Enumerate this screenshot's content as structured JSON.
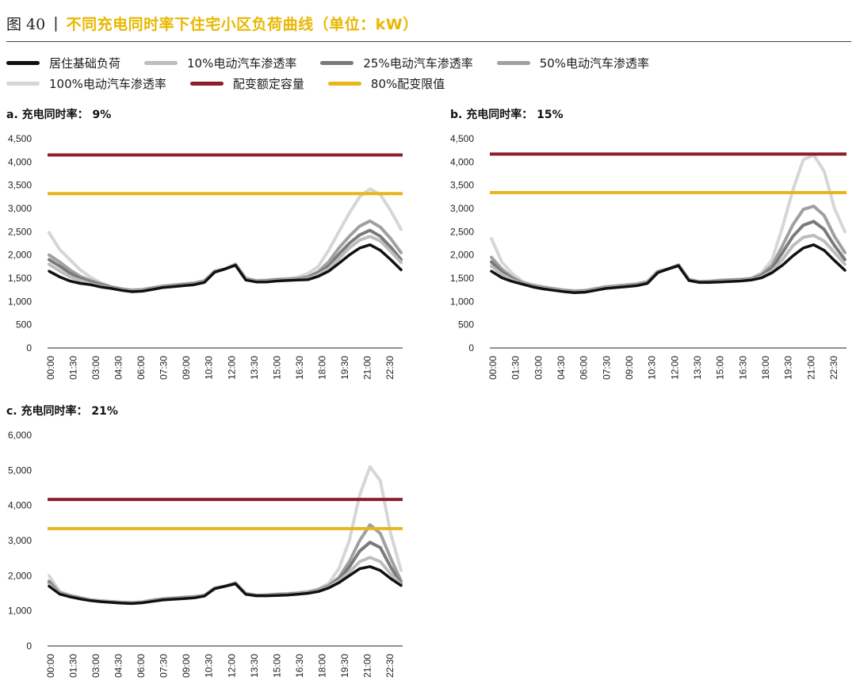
{
  "header": {
    "figure_label": "图 40",
    "separator": "|",
    "title": "不同充电同时率下住宅小区负荷曲线（单位：kW）"
  },
  "legend": {
    "items": [
      {
        "label": "居住基础负荷",
        "color": "#111111"
      },
      {
        "label": "10%电动汽车渗透率",
        "color": "#bdbdbd"
      },
      {
        "label": "25%电动汽车渗透率",
        "color": "#7a7a7a"
      },
      {
        "label": "50%电动汽车渗透率",
        "color": "#a0a0a0"
      },
      {
        "label": "100%电动汽车渗透率",
        "color": "#d6d6d6"
      },
      {
        "label": "配变额定容量",
        "color": "#8b1e2b"
      },
      {
        "label": "80%配变限值",
        "color": "#e8b51d"
      }
    ]
  },
  "chart_data": [
    {
      "type": "line",
      "title": "a. 充电同时率： 9%",
      "x_tick_labels": [
        "00:00",
        "01:30",
        "03:00",
        "04:30",
        "06:00",
        "07:30",
        "09:00",
        "10:30",
        "12:00",
        "13:30",
        "15:00",
        "16:30",
        "18:00",
        "19:30",
        "21:00",
        "22:30"
      ],
      "y_ticks": [
        0,
        500,
        1000,
        1500,
        2000,
        2500,
        3000,
        3500,
        4000,
        4500
      ],
      "y_tick_labels": [
        "0",
        "500",
        "1,000",
        "1,500",
        "2,000",
        "2,500",
        "3,000",
        "3,500",
        "4,000",
        "4,500"
      ],
      "ylim": [
        0,
        4500
      ],
      "hlines": [
        {
          "name": "配变额定容量",
          "value": 4150
        },
        {
          "name": "80%配变限值",
          "value": 3320
        }
      ],
      "series": [
        {
          "name": "100%电动汽车渗透率",
          "values": [
            2480,
            2120,
            1900,
            1680,
            1520,
            1400,
            1320,
            1270,
            1250,
            1260,
            1300,
            1330,
            1350,
            1380,
            1400,
            1450,
            1650,
            1700,
            1800,
            1500,
            1450,
            1460,
            1480,
            1490,
            1520,
            1600,
            1750,
            2100,
            2500,
            2900,
            3250,
            3420,
            3300,
            2950,
            2550
          ]
        },
        {
          "name": "50%电动汽车渗透率",
          "values": [
            2000,
            1850,
            1680,
            1540,
            1450,
            1380,
            1310,
            1270,
            1240,
            1250,
            1290,
            1330,
            1350,
            1370,
            1390,
            1440,
            1650,
            1700,
            1800,
            1490,
            1440,
            1450,
            1470,
            1480,
            1490,
            1530,
            1640,
            1850,
            2150,
            2400,
            2620,
            2730,
            2600,
            2350,
            2050
          ]
        },
        {
          "name": "25%电动汽车渗透率",
          "values": [
            1900,
            1760,
            1610,
            1500,
            1420,
            1360,
            1300,
            1260,
            1230,
            1240,
            1280,
            1320,
            1340,
            1360,
            1380,
            1430,
            1650,
            1700,
            1800,
            1480,
            1440,
            1440,
            1460,
            1470,
            1480,
            1510,
            1610,
            1760,
            2020,
            2250,
            2430,
            2530,
            2400,
            2170,
            1900
          ]
        },
        {
          "name": "10%电动汽车渗透率",
          "values": [
            1800,
            1660,
            1530,
            1450,
            1380,
            1330,
            1290,
            1250,
            1220,
            1230,
            1270,
            1310,
            1330,
            1350,
            1370,
            1420,
            1640,
            1700,
            1790,
            1470,
            1430,
            1430,
            1450,
            1460,
            1470,
            1490,
            1580,
            1700,
            1920,
            2150,
            2320,
            2400,
            2300,
            2080,
            1840
          ]
        },
        {
          "name": "居住基础负荷",
          "values": [
            1650,
            1530,
            1440,
            1390,
            1360,
            1310,
            1280,
            1240,
            1210,
            1220,
            1260,
            1300,
            1320,
            1340,
            1360,
            1410,
            1630,
            1700,
            1780,
            1460,
            1420,
            1420,
            1440,
            1450,
            1460,
            1470,
            1540,
            1650,
            1820,
            2000,
            2150,
            2220,
            2100,
            1900,
            1680
          ]
        }
      ]
    },
    {
      "type": "line",
      "title": "b. 充电同时率： 15%",
      "x_tick_labels": [
        "00:00",
        "01:30",
        "03:00",
        "04:30",
        "06:00",
        "07:30",
        "09:00",
        "10:30",
        "12:00",
        "13:30",
        "15:00",
        "16:30",
        "18:00",
        "19:30",
        "21:00",
        "22:30"
      ],
      "y_ticks": [
        0,
        500,
        1000,
        1500,
        2000,
        2500,
        3000,
        3500,
        4000,
        4500
      ],
      "y_tick_labels": [
        "0",
        "500",
        "1,000",
        "1,500",
        "2,000",
        "2,500",
        "3,000",
        "3,500",
        "4,000",
        "4,500"
      ],
      "ylim": [
        0,
        4500
      ],
      "hlines": [
        {
          "name": "配变额定容量",
          "value": 4170
        },
        {
          "name": "80%配变限值",
          "value": 3340
        }
      ],
      "series": [
        {
          "name": "100%电动汽车渗透率",
          "values": [
            2350,
            1850,
            1600,
            1430,
            1360,
            1320,
            1280,
            1250,
            1230,
            1240,
            1280,
            1320,
            1340,
            1360,
            1380,
            1430,
            1650,
            1700,
            1790,
            1480,
            1430,
            1440,
            1460,
            1470,
            1480,
            1500,
            1620,
            1900,
            2600,
            3400,
            4050,
            4150,
            3800,
            3000,
            2500
          ]
        },
        {
          "name": "50%电动汽车渗透率",
          "values": [
            1950,
            1700,
            1520,
            1400,
            1340,
            1300,
            1270,
            1240,
            1220,
            1230,
            1270,
            1310,
            1330,
            1350,
            1370,
            1420,
            1640,
            1700,
            1780,
            1470,
            1420,
            1430,
            1450,
            1460,
            1470,
            1490,
            1580,
            1780,
            2200,
            2650,
            2980,
            3050,
            2850,
            2400,
            2050
          ]
        },
        {
          "name": "25%电动汽车渗透率",
          "values": [
            1850,
            1640,
            1490,
            1390,
            1330,
            1290,
            1260,
            1230,
            1210,
            1220,
            1260,
            1300,
            1320,
            1340,
            1360,
            1410,
            1640,
            1700,
            1780,
            1460,
            1420,
            1420,
            1440,
            1450,
            1460,
            1480,
            1560,
            1720,
            2050,
            2400,
            2640,
            2720,
            2550,
            2200,
            1900
          ]
        },
        {
          "name": "10%电动汽车渗透率",
          "values": [
            1760,
            1580,
            1460,
            1380,
            1320,
            1280,
            1250,
            1220,
            1200,
            1210,
            1250,
            1290,
            1310,
            1330,
            1350,
            1400,
            1630,
            1700,
            1770,
            1460,
            1410,
            1410,
            1430,
            1440,
            1450,
            1470,
            1530,
            1660,
            1900,
            2200,
            2380,
            2420,
            2300,
            2050,
            1800
          ]
        },
        {
          "name": "居住基础负荷",
          "values": [
            1650,
            1510,
            1430,
            1370,
            1310,
            1270,
            1240,
            1210,
            1190,
            1200,
            1240,
            1280,
            1300,
            1320,
            1340,
            1390,
            1620,
            1700,
            1770,
            1450,
            1410,
            1410,
            1420,
            1430,
            1440,
            1460,
            1510,
            1620,
            1780,
            1980,
            2150,
            2220,
            2100,
            1880,
            1670
          ]
        }
      ]
    },
    {
      "type": "line",
      "title": "c. 充电同时率： 21%",
      "x_tick_labels": [
        "00:00",
        "01:30",
        "03:00",
        "04:30",
        "06:00",
        "07:30",
        "09:00",
        "10:30",
        "12:00",
        "13:30",
        "15:00",
        "16:30",
        "18:00",
        "19:30",
        "21:00",
        "22:30"
      ],
      "y_ticks": [
        0,
        1000,
        2000,
        3000,
        4000,
        5000,
        6000
      ],
      "y_tick_labels": [
        "0",
        "1,000",
        "2,000",
        "3,000",
        "4,000",
        "5,000",
        "6,000"
      ],
      "ylim": [
        0,
        6000
      ],
      "hlines": [
        {
          "name": "配变额定容量",
          "value": 4170
        },
        {
          "name": "80%配变限值",
          "value": 3340
        }
      ],
      "series": [
        {
          "name": "100%电动汽车渗透率",
          "values": [
            2000,
            1550,
            1450,
            1380,
            1320,
            1290,
            1270,
            1250,
            1240,
            1260,
            1310,
            1350,
            1370,
            1390,
            1410,
            1450,
            1650,
            1700,
            1800,
            1500,
            1450,
            1460,
            1480,
            1490,
            1520,
            1550,
            1620,
            1780,
            2200,
            3000,
            4300,
            5100,
            4700,
            3200,
            2150
          ]
        },
        {
          "name": "50%电动汽车渗透率",
          "values": [
            1850,
            1520,
            1430,
            1370,
            1310,
            1280,
            1260,
            1240,
            1230,
            1250,
            1300,
            1340,
            1360,
            1380,
            1400,
            1440,
            1650,
            1700,
            1790,
            1490,
            1440,
            1450,
            1470,
            1480,
            1500,
            1530,
            1600,
            1720,
            1950,
            2400,
            3000,
            3450,
            3200,
            2500,
            1850
          ]
        },
        {
          "name": "25%电动汽车渗透率",
          "values": [
            1800,
            1500,
            1420,
            1360,
            1300,
            1270,
            1250,
            1230,
            1220,
            1240,
            1290,
            1330,
            1350,
            1370,
            1390,
            1430,
            1640,
            1700,
            1780,
            1480,
            1440,
            1440,
            1460,
            1470,
            1490,
            1520,
            1580,
            1700,
            1900,
            2250,
            2700,
            2950,
            2800,
            2250,
            1780
          ]
        },
        {
          "name": "10%电动汽车渗透率",
          "values": [
            1750,
            1490,
            1410,
            1350,
            1300,
            1270,
            1250,
            1230,
            1220,
            1240,
            1280,
            1320,
            1340,
            1360,
            1380,
            1430,
            1640,
            1700,
            1780,
            1480,
            1430,
            1440,
            1450,
            1460,
            1480,
            1510,
            1570,
            1680,
            1850,
            2100,
            2400,
            2520,
            2400,
            2050,
            1750
          ]
        },
        {
          "name": "居住基础负荷",
          "values": [
            1700,
            1480,
            1400,
            1340,
            1290,
            1260,
            1240,
            1220,
            1210,
            1230,
            1270,
            1310,
            1330,
            1350,
            1370,
            1420,
            1630,
            1700,
            1770,
            1470,
            1430,
            1430,
            1440,
            1450,
            1470,
            1500,
            1550,
            1650,
            1800,
            2000,
            2200,
            2260,
            2150,
            1920,
            1720
          ]
        }
      ]
    }
  ]
}
